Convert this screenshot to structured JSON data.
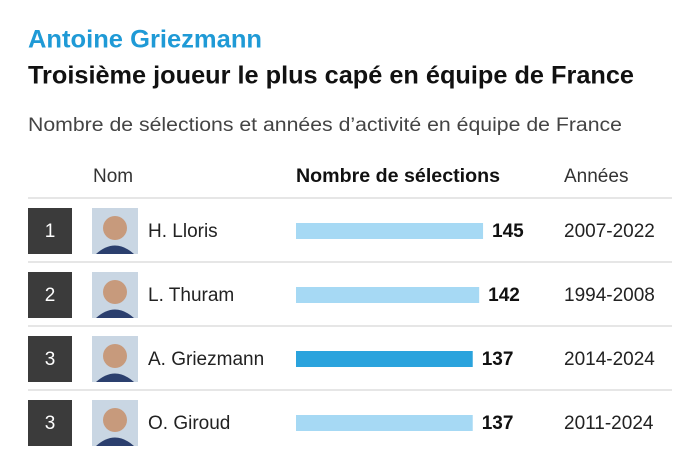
{
  "chart_data": {
    "type": "bar",
    "orientation": "horizontal",
    "kicker": "Antoine Griezmann",
    "title": "Troisième joueur le plus capé en équipe de France",
    "subtitle": "Nombre de sélections et années d’activité en équipe de France",
    "columns": [
      "Nom",
      "Nombre de sélections",
      "Années"
    ],
    "ranks": [
      1,
      2,
      3,
      3
    ],
    "categories": [
      "H. Lloris",
      "L. Thuram",
      "A. Griezmann",
      "O. Giroud"
    ],
    "values": [
      145,
      142,
      137,
      137
    ],
    "years": [
      "2007-2022",
      "1994-2008",
      "2014-2024",
      "2011-2024"
    ],
    "colors": [
      "#a6d9f4",
      "#a6d9f4",
      "#2aa3dd",
      "#a6d9f4"
    ]
  }
}
